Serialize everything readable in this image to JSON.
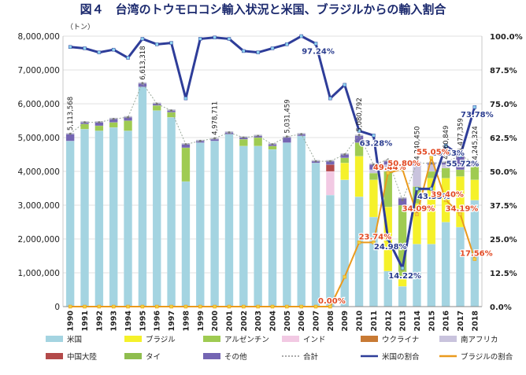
{
  "chart_data": {
    "type": "bar",
    "title": "図４　台湾のトウモロコシ輸入状況と米国、ブラジルからの輸入割合",
    "ylabel": "（トン）",
    "ylim": [
      0,
      8000000
    ],
    "y2lim": [
      0,
      1
    ],
    "y_ticks": [
      "0",
      "1,000,000",
      "2,000,000",
      "3,000,000",
      "4,000,000",
      "5,000,000",
      "6,000,000",
      "7,000,000",
      "8,000,000"
    ],
    "y2_ticks": [
      "0.0%",
      "12.5%",
      "25.0%",
      "37.5%",
      "50.0%",
      "62.5%",
      "75.0%",
      "87.5%",
      "100.0%"
    ],
    "categories": [
      "1990",
      "1991",
      "1992",
      "1993",
      "1994",
      "1995",
      "1996",
      "1997",
      "1998",
      "1999",
      "2000",
      "2001",
      "2002",
      "2003",
      "2004",
      "2005",
      "2006",
      "2007",
      "2008",
      "2009",
      "2010",
      "2011",
      "2012",
      "2013",
      "2014",
      "2015",
      "2016",
      "2017",
      "2018"
    ],
    "colors": {
      "us": "#a4d4e1",
      "brazil": "#f5f12a",
      "argentina": "#9fcb52",
      "india": "#f2c9e3",
      "ukraine": "#c87a34",
      "southafrica": "#c9c3dd",
      "china": "#b34a4a",
      "thai": "#8fbd4e",
      "other": "#7465b3",
      "total": "#9aa89a",
      "usshare": "#2e3d99",
      "brshare": "#ea9a1d"
    },
    "legend": {
      "placement": "bottom",
      "items": [
        {
          "key": "us",
          "label": "米国",
          "type": "bar"
        },
        {
          "key": "brazil",
          "label": "ブラジル",
          "type": "bar"
        },
        {
          "key": "argentina",
          "label": "アルゼンチン",
          "type": "bar"
        },
        {
          "key": "india",
          "label": "インド",
          "type": "bar"
        },
        {
          "key": "ukraine",
          "label": "ウクライナ",
          "type": "bar"
        },
        {
          "key": "southafrica",
          "label": "南アフリカ",
          "type": "bar"
        },
        {
          "key": "china",
          "label": "中国大陸",
          "type": "bar"
        },
        {
          "key": "thai",
          "label": "タイ",
          "type": "bar"
        },
        {
          "key": "other",
          "label": "その他",
          "type": "bar"
        },
        {
          "key": "total",
          "label": "合計",
          "type": "dot"
        },
        {
          "key": "usshare",
          "label": "米国の割合",
          "type": "line"
        },
        {
          "key": "brshare",
          "label": "ブラジルの割合",
          "type": "line"
        }
      ]
    },
    "series": [
      {
        "key": "us",
        "name": "米国",
        "values": [
          4900000,
          5250000,
          5200000,
          5300000,
          5200000,
          6500000,
          5800000,
          5600000,
          3700000,
          4850000,
          4900000,
          5100000,
          4750000,
          4750000,
          4650000,
          4850000,
          5050000,
          4250000,
          3300000,
          3750000,
          3250000,
          2650000,
          1050000,
          600000,
          1850000,
          1850000,
          2500000,
          2350000,
          3150000
        ]
      },
      {
        "key": "brazil",
        "name": "ブラジル",
        "values": [
          0,
          0,
          0,
          0,
          0,
          0,
          0,
          0,
          0,
          0,
          0,
          0,
          0,
          0,
          0,
          0,
          0,
          0,
          0,
          500000,
          1200000,
          1100000,
          1900000,
          300000,
          1200000,
          1950000,
          1300000,
          1500000,
          600000
        ]
      },
      {
        "key": "argentina",
        "name": "アルゼンチン",
        "values": [
          0,
          150000,
          150000,
          150000,
          300000,
          0,
          150000,
          150000,
          1000000,
          0,
          0,
          0,
          200000,
          250000,
          100000,
          0,
          0,
          0,
          0,
          150000,
          400000,
          200000,
          1050000,
          2100000,
          500000,
          200000,
          300000,
          200000,
          400000
        ]
      },
      {
        "key": "india",
        "name": "インド",
        "values": [
          0,
          0,
          0,
          0,
          0,
          0,
          0,
          0,
          0,
          0,
          0,
          0,
          0,
          0,
          0,
          0,
          0,
          0,
          700000,
          0,
          0,
          0,
          0,
          0,
          0,
          0,
          0,
          0,
          0
        ]
      },
      {
        "key": "ukraine",
        "name": "ウクライナ",
        "values": [
          0,
          0,
          0,
          0,
          0,
          0,
          0,
          0,
          0,
          0,
          0,
          0,
          0,
          0,
          0,
          0,
          0,
          0,
          0,
          0,
          0,
          0,
          0,
          0,
          0,
          0,
          0,
          0,
          0
        ]
      },
      {
        "key": "southafrica",
        "name": "南アフリカ",
        "values": [
          0,
          0,
          0,
          0,
          0,
          0,
          0,
          0,
          0,
          0,
          0,
          0,
          0,
          0,
          0,
          0,
          0,
          0,
          0,
          0,
          0,
          100000,
          200000,
          0,
          600000,
          200000,
          100000,
          0,
          0
        ]
      },
      {
        "key": "china",
        "name": "中国大陸",
        "values": [
          0,
          0,
          0,
          0,
          0,
          0,
          0,
          0,
          0,
          0,
          0,
          0,
          0,
          0,
          0,
          0,
          0,
          0,
          200000,
          0,
          0,
          0,
          0,
          0,
          0,
          0,
          0,
          0,
          0
        ]
      },
      {
        "key": "thai",
        "name": "タイ",
        "values": [
          0,
          0,
          0,
          0,
          0,
          0,
          0,
          0,
          0,
          0,
          0,
          0,
          0,
          0,
          0,
          0,
          0,
          0,
          0,
          0,
          0,
          0,
          0,
          0,
          0,
          0,
          0,
          0,
          0
        ]
      },
      {
        "key": "other",
        "name": "その他",
        "values": [
          200000,
          50000,
          100000,
          100000,
          100000,
          100000,
          50000,
          50000,
          100000,
          50000,
          50000,
          50000,
          50000,
          50000,
          50000,
          150000,
          50000,
          50000,
          100000,
          100000,
          200000,
          150000,
          100000,
          200000,
          100000,
          40000,
          60000,
          420000,
          95000
        ]
      }
    ],
    "total": {
      "name": "合計",
      "values": [
        5113568,
        5450000,
        5450000,
        5550000,
        5600000,
        6613318,
        6000000,
        5800000,
        4800000,
        4900000,
        4978711,
        5150000,
        5000000,
        5050000,
        4800000,
        5031459,
        5100000,
        4300000,
        4300000,
        4500000,
        5080792,
        4200000,
        4350000,
        3150000,
        4240450,
        4240450,
        4260849,
        4477359,
        4245324
      ]
    },
    "total_labels": {
      "1990": "5,113,568",
      "1995": "6,613,318",
      "2000": "4,978,711",
      "2005": "5,031,459",
      "2010": "5,080,792",
      "2014": "4,240,450",
      "2016": "4,260,849",
      "2017": "4,477,359",
      "2018": "4,245,324"
    },
    "us_share": {
      "name": "米国の割合",
      "values": [
        0.96,
        0.955,
        0.94,
        0.95,
        0.92,
        0.99,
        0.97,
        0.975,
        0.77,
        0.99,
        0.995,
        0.99,
        0.945,
        0.94,
        0.955,
        0.97,
        1.0,
        0.9724,
        0.77,
        0.82,
        0.65,
        0.6328,
        0.2498,
        0.1422,
        0.4355,
        0.4355,
        0.5953,
        0.5572,
        0.7378
      ]
    },
    "brazil_share": {
      "name": "ブラジルの割合",
      "values": [
        0,
        0,
        0,
        0,
        0,
        0,
        0,
        0,
        0,
        0,
        0,
        0,
        0,
        0,
        0,
        0,
        0,
        0,
        0,
        0.11,
        0.2374,
        0.2374,
        0.4944,
        0.508,
        0.3409,
        0.5505,
        0.394,
        0.3419,
        0.1756
      ]
    },
    "share_labels": [
      {
        "series": "us",
        "year": "2007",
        "text": "97.24%"
      },
      {
        "series": "us",
        "year": "2011",
        "text": "63.28%"
      },
      {
        "series": "us",
        "year": "2012",
        "text": "24.98%"
      },
      {
        "series": "us",
        "year": "2013",
        "text": "14.22%"
      },
      {
        "series": "us",
        "year": "2015",
        "text": "43.55%"
      },
      {
        "series": "us",
        "year": "2016",
        "text": "59.53%"
      },
      {
        "series": "us",
        "year": "2017",
        "text": "55.72%"
      },
      {
        "series": "us",
        "year": "2018",
        "text": "73.78%"
      },
      {
        "series": "br",
        "year": "2008",
        "text": "0.00%"
      },
      {
        "series": "br",
        "year": "2011",
        "text": "23.74%"
      },
      {
        "series": "br",
        "year": "2012",
        "text": "49.44%"
      },
      {
        "series": "br",
        "year": "2013",
        "text": "50.80%"
      },
      {
        "series": "br",
        "year": "2014",
        "text": "34.09%"
      },
      {
        "series": "br",
        "year": "2015",
        "text": "55.05%"
      },
      {
        "series": "br",
        "year": "2016",
        "text": "39.40%"
      },
      {
        "series": "br",
        "year": "2017",
        "text": "34.19%"
      },
      {
        "series": "br",
        "year": "2018",
        "text": "17.56%"
      }
    ]
  }
}
